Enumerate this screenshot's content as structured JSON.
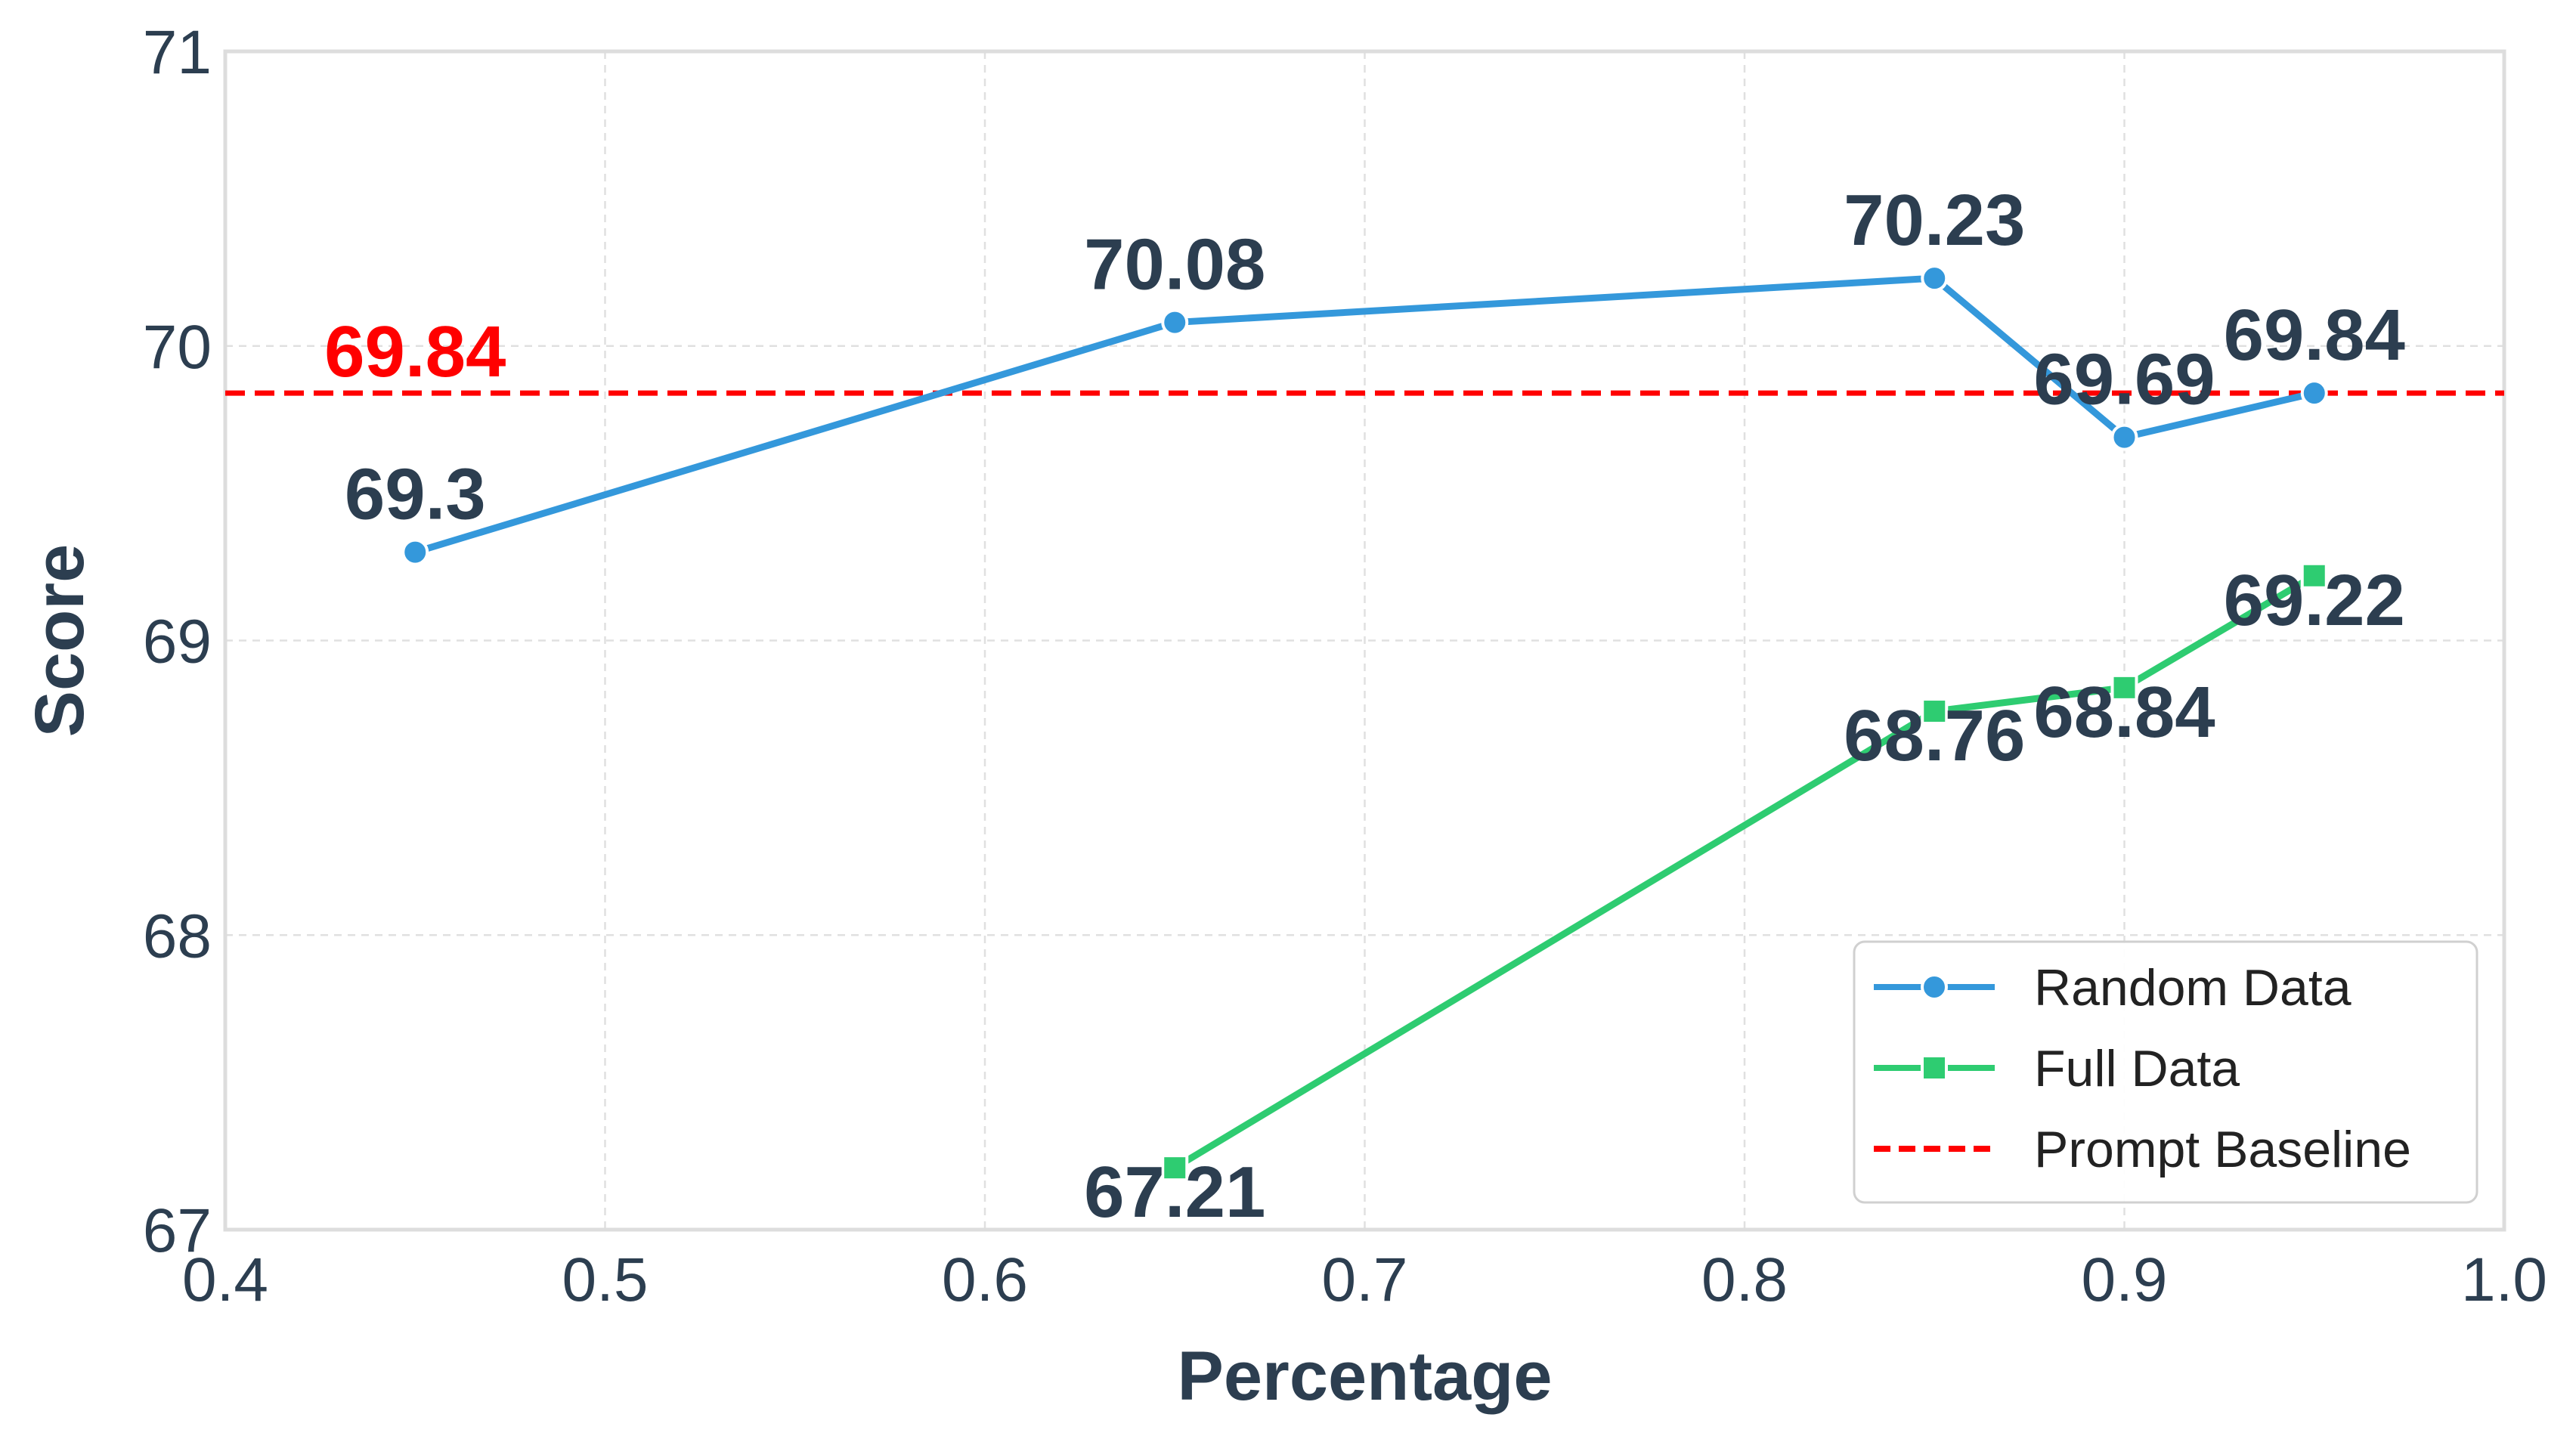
{
  "chart_data": {
    "type": "line",
    "xlabel": "Percentage",
    "ylabel": "Score",
    "xlim": [
      0.4,
      1.0
    ],
    "ylim": [
      67,
      71
    ],
    "x_ticks": [
      "0.4",
      "0.5",
      "0.6",
      "0.7",
      "0.8",
      "0.9",
      "1.0"
    ],
    "y_ticks": [
      "67",
      "68",
      "69",
      "70",
      "71"
    ],
    "grid": true,
    "legend_position": "bottom-right",
    "series": [
      {
        "name": "Random Data",
        "color": "#3498db",
        "marker": "circle",
        "x": [
          0.45,
          0.65,
          0.85,
          0.9,
          0.95
        ],
        "y": [
          69.3,
          70.08,
          70.23,
          69.69,
          69.84
        ],
        "labels": [
          "69.3",
          "70.08",
          "70.23",
          "69.69",
          "69.84"
        ]
      },
      {
        "name": "Full Data",
        "color": "#2ecc71",
        "marker": "square",
        "x": [
          0.65,
          0.85,
          0.9,
          0.95
        ],
        "y": [
          67.21,
          68.76,
          68.84,
          69.22
        ],
        "labels": [
          "67.21",
          "68.76",
          "68.84",
          "69.22"
        ]
      }
    ],
    "baseline": {
      "name": "Prompt Baseline",
      "color": "#ff0000",
      "value": 69.84,
      "label": "69.84"
    }
  }
}
